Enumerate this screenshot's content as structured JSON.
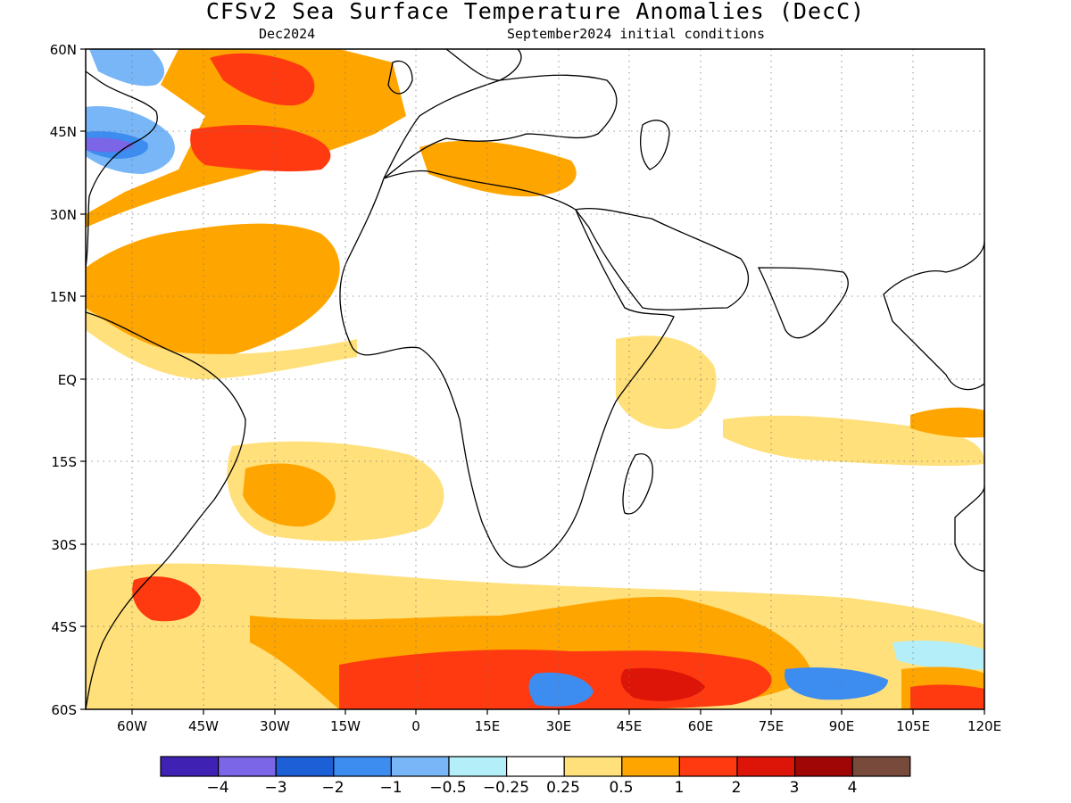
{
  "title": "CFSv2 Sea Surface Temperature Anomalies (DecC)",
  "subtitle_left": "Dec2024",
  "subtitle_right": "September2024 initial conditions",
  "lon_labels": [
    "60W",
    "45W",
    "30W",
    "15W",
    "0",
    "15E",
    "30E",
    "45E",
    "60E",
    "75E",
    "90E",
    "105E",
    "120E"
  ],
  "lat_labels": [
    "60N",
    "45N",
    "30N",
    "15N",
    "EQ",
    "15S",
    "30S",
    "45S",
    "60S"
  ],
  "colorbar": {
    "labels": [
      "−4",
      "−3",
      "−2",
      "−1",
      "−0.5",
      "−0.25",
      "0.25",
      "0.5",
      "1",
      "2",
      "3",
      "4"
    ],
    "colors": [
      "#3f22b3",
      "#7a66e6",
      "#1c5fd6",
      "#3d8cf0",
      "#78b6f7",
      "#b3eef9",
      "#ffffff",
      "#ffe07a",
      "#ffa500",
      "#ff3a10",
      "#dd1408",
      "#a00606",
      "#784a3c"
    ]
  },
  "map": {
    "lon_range": [
      -70,
      120
    ],
    "lat_range": [
      -60,
      60
    ]
  }
}
